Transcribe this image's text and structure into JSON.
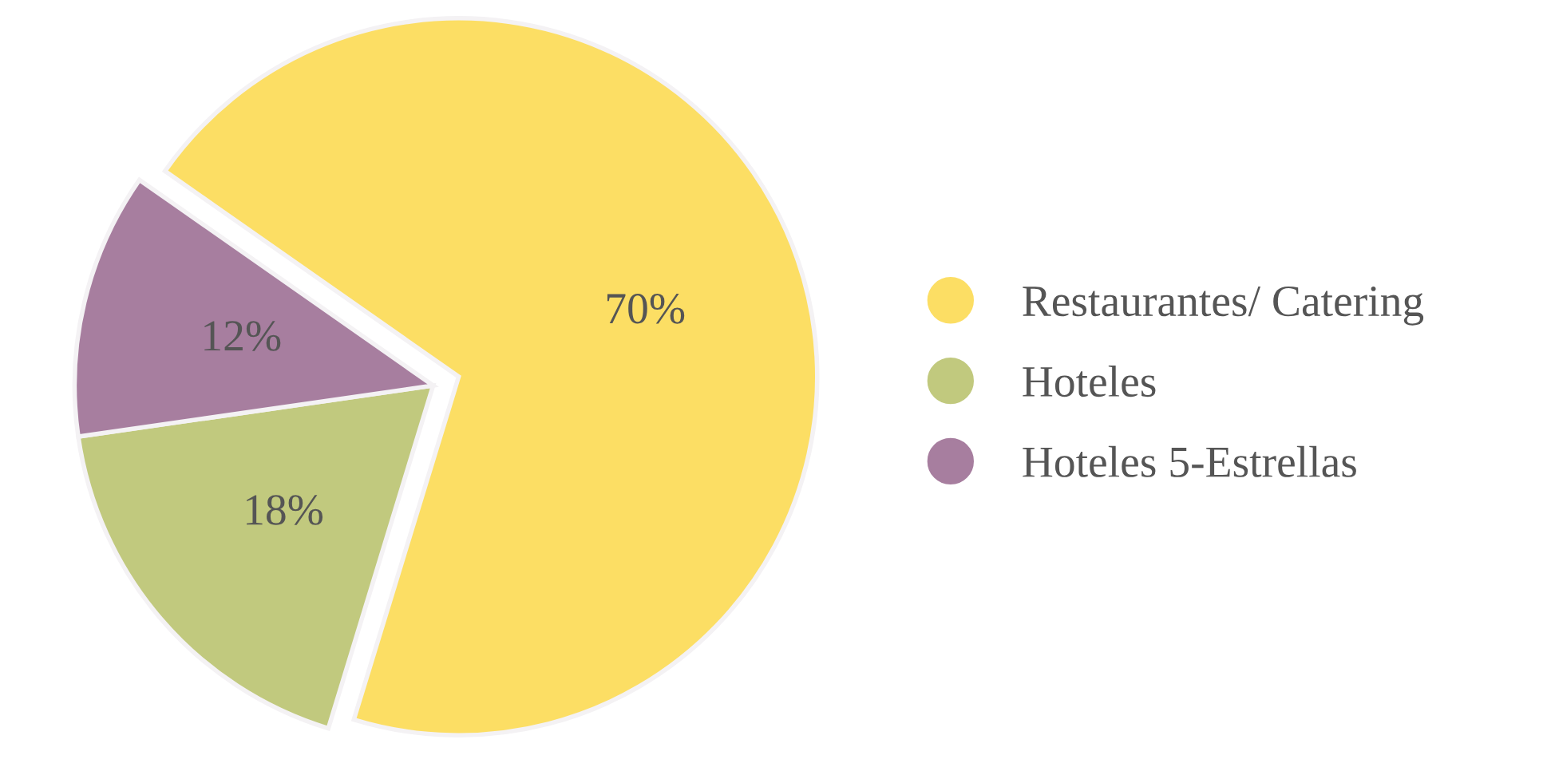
{
  "chart_data": {
    "type": "pie",
    "categories": [
      "Restaurantes/ Catering",
      "Hoteles",
      "Hoteles 5-Estrellas"
    ],
    "values": [
      70,
      18,
      12
    ],
    "colors": [
      "#fcde64",
      "#c1c97e",
      "#a77e9f"
    ],
    "value_labels": [
      "70%",
      "18%",
      "12%"
    ],
    "legend": "right"
  }
}
